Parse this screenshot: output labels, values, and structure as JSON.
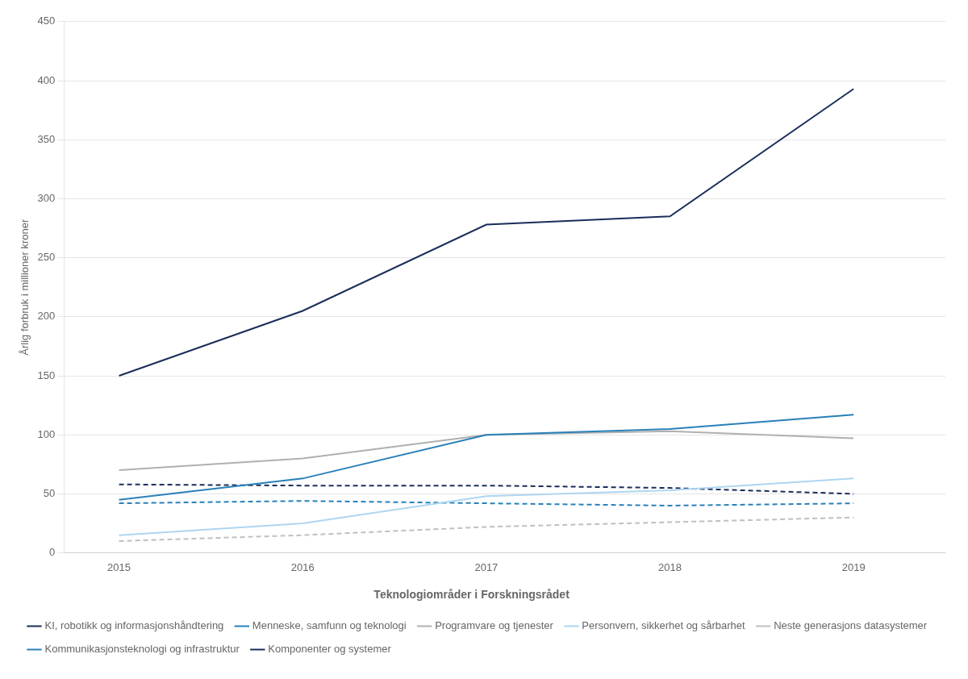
{
  "chart_data": {
    "type": "line",
    "x": [
      2015,
      2016,
      2017,
      2018,
      2019
    ],
    "series": [
      {
        "name": "KI, robotikk og informasjonshåndtering",
        "values": [
          150,
          205,
          278,
          285,
          393
        ],
        "color": "#1a2e5a",
        "line_style": "solid"
      },
      {
        "name": "Menneske, samfunn og teknologi",
        "values": [
          45,
          63,
          100,
          105,
          117
        ],
        "color": "#2980b9",
        "line_style": "solid"
      },
      {
        "name": "Programvare og tjenester",
        "values": [
          70,
          80,
          100,
          103,
          97
        ],
        "color": "#b0b0b0",
        "line_style": "solid"
      },
      {
        "name": "Personvern, sikkerhet og sårbarhet",
        "values": [
          15,
          25,
          48,
          53,
          63
        ],
        "color": "#aed6f1",
        "line_style": "solid"
      },
      {
        "name": "Neste generasjons datasystemer",
        "values": [
          10,
          15,
          22,
          26,
          30
        ],
        "color": "#c0c0c0",
        "line_style": "dashed"
      },
      {
        "name": "Kommunikasjonsteknologi og infrastruktur",
        "values": [
          42,
          44,
          42,
          40,
          42
        ],
        "color": "#2980b9",
        "line_style": "dashed"
      },
      {
        "name": "Komponenter og systemer",
        "values": [
          58,
          57,
          57,
          55,
          50
        ],
        "color": "#1a2e5a",
        "line_style": "dashed"
      }
    ],
    "y_label": "Årlig forbruk i millioner kroner",
    "legend_title": "Teknologiområder i Forskningsrådet",
    "legend": "bottom",
    "grid": "y",
    "xlim": [
      2014.7,
      2019.5
    ],
    "xticks": [
      2015,
      2016,
      2017,
      2018,
      2019
    ],
    "ylim": [
      0,
      450
    ],
    "yticks": [
      0,
      50,
      100,
      150,
      200,
      250,
      300,
      350,
      400,
      450
    ]
  }
}
